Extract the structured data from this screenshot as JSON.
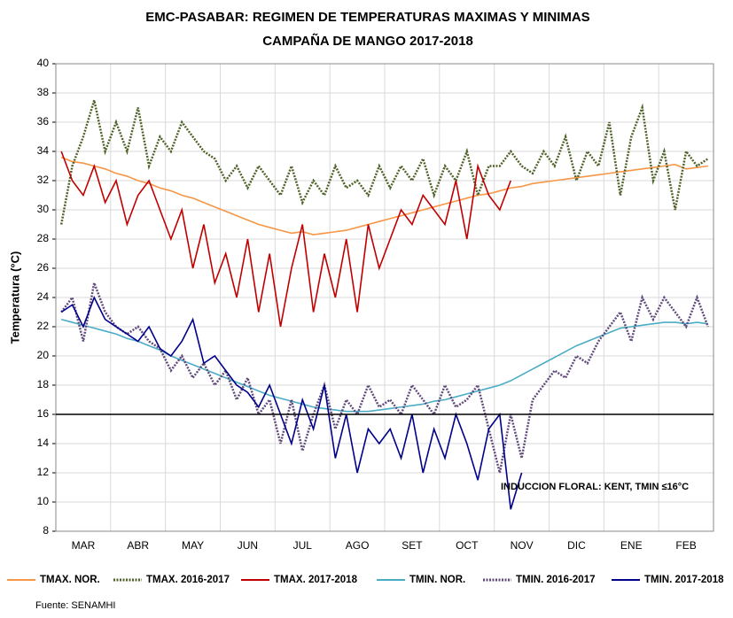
{
  "chart_data": {
    "type": "line",
    "title": "EMC-PASABAR: REGIMEN DE TEMPERATURAS  MAXIMAS Y MINIMAS",
    "subtitle": "CAMPAÑA DE MANGO 2017-2018",
    "y_label": "Temperatura (°C)",
    "source": "Fuente: SENAMHI",
    "annotation": "INDUCCION FLORAL: KENT, TMIN ≤16°C",
    "threshold": 16,
    "ylim": [
      8,
      40
    ],
    "yticks": [
      8,
      10,
      12,
      14,
      16,
      18,
      20,
      22,
      24,
      26,
      28,
      30,
      32,
      34,
      36,
      38,
      40
    ],
    "grid": true,
    "categories": [
      null,
      null,
      "MAR",
      null,
      null,
      null,
      null,
      "ABR",
      null,
      null,
      null,
      null,
      "MAY",
      null,
      null,
      null,
      null,
      "JUN",
      null,
      null,
      null,
      null,
      "JUL",
      null,
      null,
      null,
      null,
      "AGO",
      null,
      null,
      null,
      null,
      "SET",
      null,
      null,
      null,
      null,
      "OCT",
      null,
      null,
      null,
      null,
      "NOV",
      null,
      null,
      null,
      null,
      "DIC",
      null,
      null,
      null,
      null,
      "ENE",
      null,
      null,
      null,
      null,
      "FEB",
      null,
      null
    ],
    "series": [
      {
        "name": "TMAX. NOR.",
        "color": "#f79646",
        "dash": false,
        "values": [
          33.6,
          33.3,
          33.2,
          33,
          32.8,
          32.5,
          32.3,
          32,
          31.8,
          31.5,
          31.3,
          31,
          30.8,
          30.5,
          30.2,
          29.9,
          29.6,
          29.3,
          29,
          28.8,
          28.6,
          28.4,
          28.5,
          28.3,
          28.4,
          28.5,
          28.6,
          28.8,
          29,
          29.2,
          29.4,
          29.6,
          29.8,
          30,
          30.2,
          30.4,
          30.6,
          30.8,
          31,
          31.1,
          31.3,
          31.5,
          31.6,
          31.8,
          31.9,
          32,
          32.1,
          32.2,
          32.3,
          32.4,
          32.5,
          32.6,
          32.7,
          32.8,
          32.9,
          33,
          33.1,
          32.8,
          32.9,
          33
        ]
      },
      {
        "name": "TMAX. 2016-2017",
        "color": "#4f6228",
        "dash": true,
        "values": [
          29,
          33,
          35,
          37.5,
          34,
          36,
          34,
          37,
          33,
          35,
          34,
          36,
          35,
          34,
          33.5,
          32,
          33,
          31.5,
          33,
          32,
          31,
          33,
          30.5,
          32,
          31,
          33,
          31.5,
          32,
          31,
          33,
          31.5,
          33,
          32,
          33.5,
          31,
          33,
          32,
          34,
          31,
          33,
          33,
          34,
          33,
          32.5,
          34,
          33,
          35,
          32,
          34,
          33,
          36,
          31,
          35,
          37,
          32,
          34,
          30,
          34,
          33,
          33.5
        ]
      },
      {
        "name": "TMAX. 2017-2018",
        "color": "#c00000",
        "dash": false,
        "values": [
          34,
          32,
          31,
          33,
          30.5,
          32,
          29,
          31,
          32,
          30,
          28,
          30,
          26,
          29,
          25,
          27,
          24,
          28,
          23,
          27,
          22,
          26,
          29,
          23,
          27,
          24,
          28,
          23,
          29,
          26,
          28,
          30,
          29,
          31,
          30,
          29,
          32,
          28,
          33,
          31,
          30,
          32,
          null,
          null,
          null,
          null,
          null,
          null,
          null,
          null,
          null,
          null,
          null,
          null,
          null,
          null,
          null,
          null,
          null,
          null
        ]
      },
      {
        "name": "TMIN. NOR.",
        "color": "#4bacc6",
        "dash": false,
        "values": [
          22.5,
          22.3,
          22.1,
          21.9,
          21.7,
          21.5,
          21.2,
          21,
          20.7,
          20.4,
          20,
          19.7,
          19.4,
          19.1,
          18.8,
          18.5,
          18.2,
          17.9,
          17.6,
          17.3,
          17.1,
          16.9,
          16.7,
          16.5,
          16.4,
          16.3,
          16.2,
          16.2,
          16.2,
          16.3,
          16.4,
          16.5,
          16.6,
          16.7,
          16.9,
          17,
          17.2,
          17.4,
          17.6,
          17.8,
          18,
          18.3,
          18.7,
          19.1,
          19.5,
          19.9,
          20.3,
          20.7,
          21,
          21.3,
          21.6,
          21.9,
          22,
          22.1,
          22.2,
          22.3,
          22.3,
          22.2,
          22.3,
          22.2
        ]
      },
      {
        "name": "TMIN. 2016-2017",
        "color": "#604a7b",
        "dash": true,
        "values": [
          23,
          24,
          21,
          25,
          23,
          22,
          21.5,
          22,
          21,
          20.5,
          19,
          20,
          18.5,
          19.5,
          18,
          19,
          17,
          18.5,
          16,
          17,
          14,
          17,
          13.5,
          16,
          18,
          15,
          17,
          16,
          18,
          16.5,
          17,
          16,
          18,
          17,
          16,
          18,
          16.5,
          17,
          18,
          15,
          12,
          16,
          13,
          17,
          18,
          19,
          18.5,
          20,
          19.5,
          21,
          22,
          23,
          21,
          24,
          22.5,
          24,
          23,
          22,
          24,
          22
        ]
      },
      {
        "name": "TMIN. 2017-2018",
        "color": "#00008b",
        "dash": false,
        "values": [
          23,
          23.5,
          22,
          24,
          22.5,
          22,
          21.5,
          21,
          22,
          20.5,
          20,
          21,
          22.5,
          19.5,
          20,
          19,
          18,
          17.5,
          16.5,
          18,
          16,
          14,
          17,
          15,
          18,
          13,
          16,
          12,
          15,
          14,
          15,
          13,
          16,
          12,
          15,
          13,
          16,
          14,
          11.5,
          15,
          16,
          9.5,
          12,
          null,
          null,
          null,
          null,
          null,
          null,
          null,
          null,
          null,
          null,
          null,
          null,
          null,
          null,
          null,
          null,
          null
        ]
      }
    ]
  }
}
